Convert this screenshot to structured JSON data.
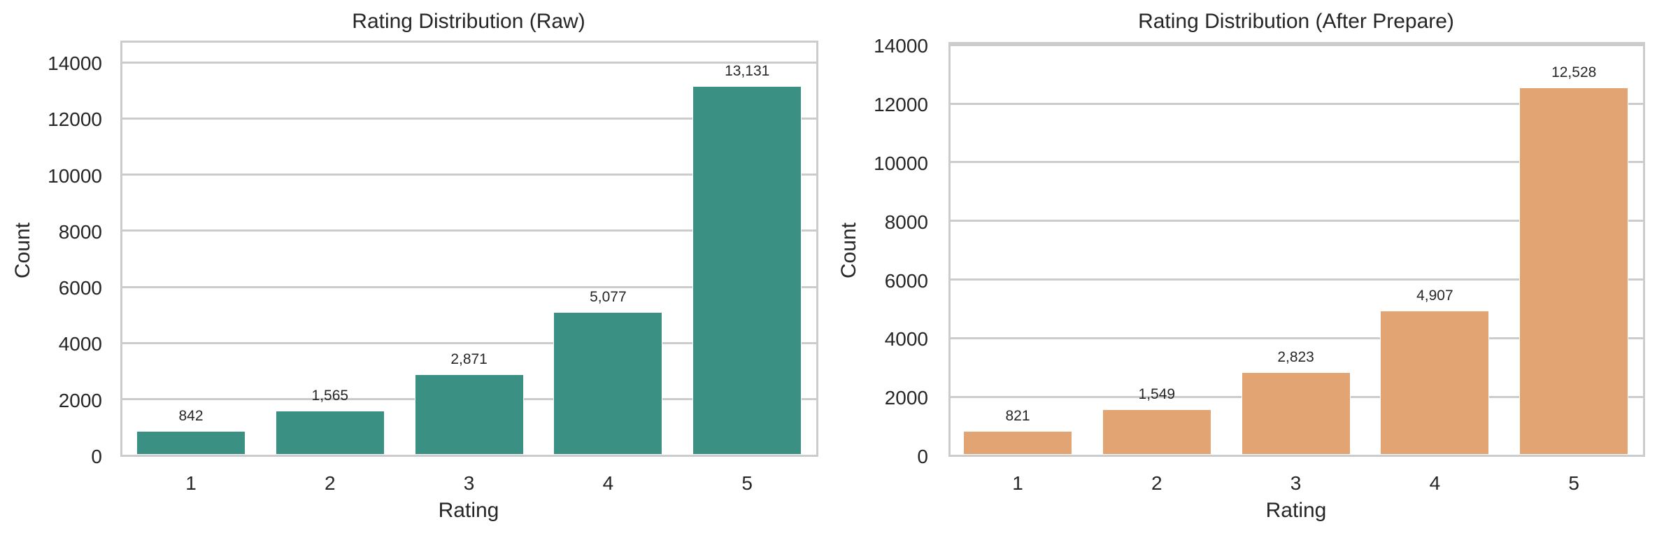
{
  "chart_data": [
    {
      "type": "bar",
      "title": "Rating Distribution (Raw)",
      "xlabel": "Rating",
      "ylabel": "Count",
      "categories": [
        "1",
        "2",
        "3",
        "4",
        "5"
      ],
      "values": [
        842,
        1565,
        2871,
        5077,
        13131
      ],
      "value_labels": [
        "842",
        "1,565",
        "2,871",
        "5,077",
        "13,131"
      ],
      "yticks": [
        0,
        2000,
        4000,
        6000,
        8000,
        10000,
        12000,
        14000
      ],
      "ylim": [
        0,
        14700
      ],
      "grid": true,
      "legend": null,
      "color": "#3a9083"
    },
    {
      "type": "bar",
      "title": "Rating Distribution (After Prepare)",
      "xlabel": "Rating",
      "ylabel": "Count",
      "categories": [
        "1",
        "2",
        "3",
        "4",
        "5"
      ],
      "values": [
        821,
        1549,
        2823,
        4907,
        12528
      ],
      "value_labels": [
        "821",
        "1,549",
        "2,823",
        "4,907",
        "12,528"
      ],
      "yticks": [
        0,
        2000,
        4000,
        6000,
        8000,
        10000,
        12000,
        14000
      ],
      "ylim": [
        0,
        14030
      ],
      "grid": true,
      "legend": null,
      "color": "#e2a473"
    }
  ]
}
